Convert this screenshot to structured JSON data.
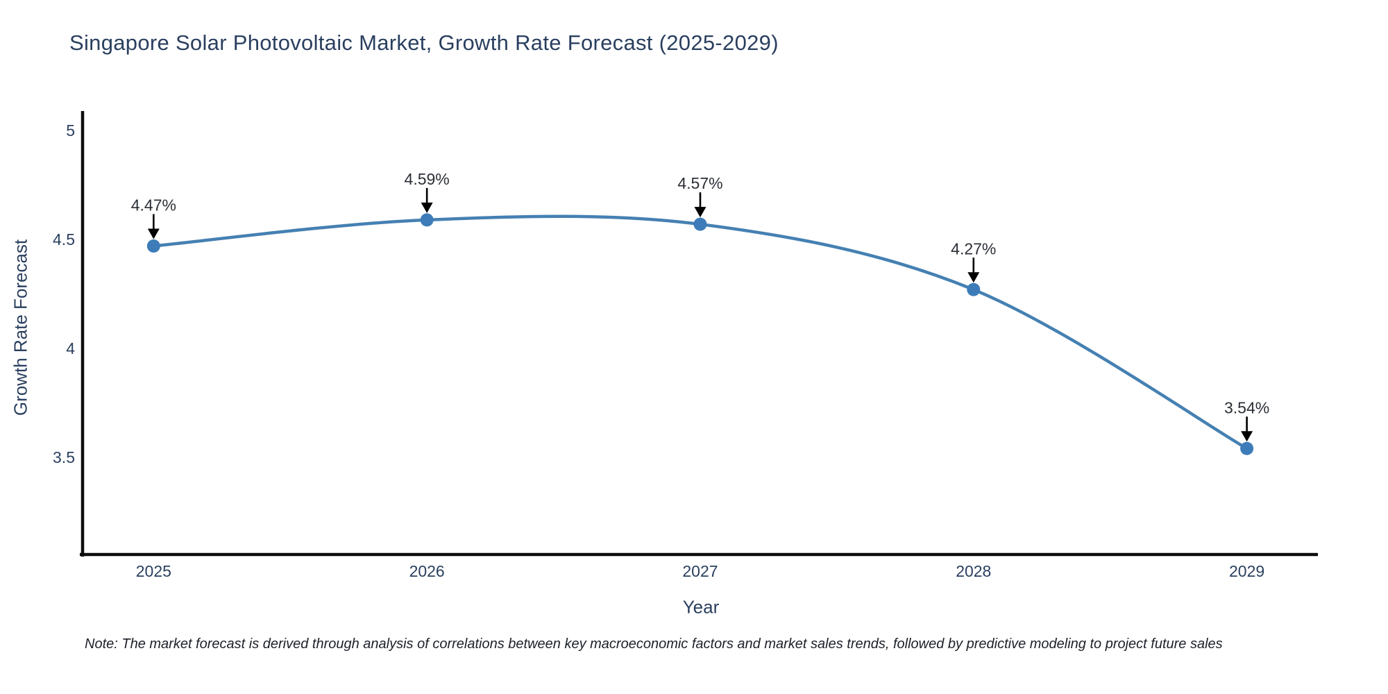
{
  "title": "Singapore Solar Photovoltaic Market, Growth Rate Forecast (2025-2029)",
  "note": "Note: The market forecast is derived through analysis of correlations between key macroeconomic factors and market sales trends, followed by predictive modeling to project future sales",
  "chart_data": {
    "type": "line",
    "title": "Singapore Solar Photovoltaic Market, Growth Rate Forecast (2025-2029)",
    "xlabel": "Year",
    "ylabel": "Growth Rate Forecast",
    "x": [
      2025,
      2026,
      2027,
      2028,
      2029
    ],
    "values": [
      4.47,
      4.59,
      4.57,
      4.27,
      3.54
    ],
    "point_labels": [
      "4.47%",
      "4.59%",
      "4.57%",
      "4.27%",
      "3.54%"
    ],
    "x_tick_labels": [
      "2025",
      "2026",
      "2027",
      "2028",
      "2029"
    ],
    "y_ticks": [
      5,
      4.5,
      4,
      3.5
    ],
    "y_tick_labels": [
      "5",
      "4.5",
      "4",
      "3.5"
    ],
    "xlim": [
      2024.73,
      2029.26
    ],
    "ylim": [
      3.05,
      5.09
    ],
    "line_shape": "spline",
    "grid": false,
    "legend": false,
    "line_color": "#4580b2",
    "marker_color": "#3d7cb8",
    "axis_color": "#0d0d0d",
    "tick_color": "#2a3f5f",
    "annotation_color": "#2b2f36",
    "arrow_color": "#000000"
  }
}
